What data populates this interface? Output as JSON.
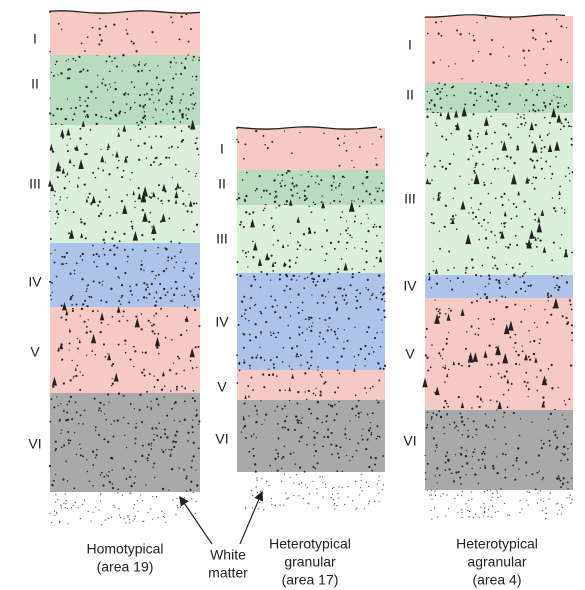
{
  "columns": [
    {
      "layers": [
        "I",
        "II",
        "III",
        "IV",
        "V",
        "VI"
      ],
      "caption": [
        "Homotypical",
        "(area 19)"
      ]
    },
    {
      "layers": [
        "I",
        "II",
        "III",
        "IV",
        "V",
        "VI"
      ],
      "caption": [
        "Heterotypical",
        "granular",
        "(area 17)"
      ]
    },
    {
      "layers": [
        "I",
        "II",
        "III",
        "IV",
        "V",
        "VI"
      ],
      "caption": [
        "Heterotypical",
        "agranular",
        "(area 4)"
      ]
    }
  ],
  "white_matter": [
    "White",
    "matter"
  ]
}
